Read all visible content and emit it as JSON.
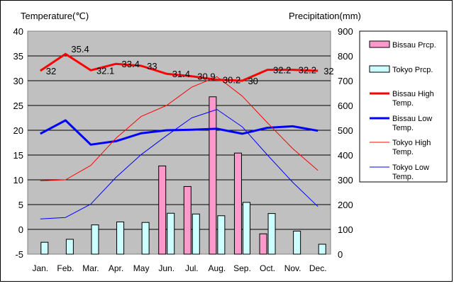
{
  "chart_data": {
    "type": "bar+line",
    "left_axis_title": "Temperature(℃)",
    "right_axis_title": "Precipitation(mm)",
    "categories": [
      "Jan.",
      "Feb.",
      "Mar.",
      "Apr.",
      "May",
      "Jun.",
      "Jul.",
      "Aug.",
      "Sep.",
      "Oct.",
      "Nov.",
      "Dec."
    ],
    "temp_axis": {
      "min": -5,
      "max": 40,
      "step": 5,
      "ticks": [
        "-5",
        "0",
        "5",
        "10",
        "15",
        "20",
        "25",
        "30",
        "35",
        "40"
      ]
    },
    "precip_axis": {
      "min": 0,
      "max": 900,
      "step": 100,
      "ticks": [
        "0",
        "100",
        "200",
        "300",
        "400",
        "500",
        "600",
        "700",
        "800",
        "900"
      ]
    },
    "bars": [
      {
        "name": "Bissau Prcp.",
        "color": "#ff99cc",
        "values": [
          0,
          0,
          0,
          0,
          0,
          356,
          273,
          635,
          408,
          82,
          0,
          0
        ]
      },
      {
        "name": "Tokyo Prcp.",
        "color": "#ccffff",
        "values": [
          48,
          60,
          118,
          130,
          128,
          165,
          162,
          155,
          209,
          164,
          93,
          40
        ]
      }
    ],
    "lines": [
      {
        "name": "Bissau High Temp.",
        "color": "#ff0000",
        "width": 3,
        "values": [
          32,
          35.4,
          32.1,
          33.4,
          33,
          31.4,
          30.9,
          30.2,
          30,
          32.2,
          32.2,
          32
        ],
        "labels": [
          "32",
          "35.4",
          "32.1",
          "33.4",
          "33",
          "31.4",
          "30.9",
          "30.2",
          "30",
          "32.2",
          "32.2",
          "32"
        ]
      },
      {
        "name": "Bissau Low Temp.",
        "color": "#0000ff",
        "width": 3,
        "values": [
          19.3,
          22,
          17.1,
          17.8,
          19.4,
          20,
          20.1,
          20.3,
          19.3,
          20.5,
          20.8,
          19.9
        ]
      },
      {
        "name": "Tokyo High Temp.",
        "color": "#ff0000",
        "width": 1,
        "values": [
          9.8,
          10,
          12.9,
          18.4,
          22.8,
          25,
          28.7,
          30.8,
          26.9,
          21.5,
          16.3,
          11.9
        ]
      },
      {
        "name": "Tokyo Low Temp.",
        "color": "#0000ff",
        "width": 1,
        "values": [
          2.1,
          2.4,
          5.1,
          10.5,
          15.1,
          18.9,
          22.5,
          24.2,
          20.7,
          15,
          9.5,
          4.6
        ]
      }
    ],
    "legend": [
      {
        "label": "Bissau Prcp.",
        "kind": "bar",
        "color": "#ff99cc"
      },
      {
        "label": "Tokyo Prcp.",
        "kind": "bar",
        "color": "#ccffff"
      },
      {
        "label": "Bissau High Temp.",
        "kind": "line",
        "color": "#ff0000",
        "width": 3
      },
      {
        "label": "Bissau Low Temp.",
        "kind": "line",
        "color": "#0000ff",
        "width": 3
      },
      {
        "label": "Tokyo High Temp.",
        "kind": "line",
        "color": "#ff0000",
        "width": 1
      },
      {
        "label": "Tokyo Low Temp.",
        "kind": "line",
        "color": "#0000ff",
        "width": 1
      }
    ],
    "legend_position": "right",
    "plot_background": "#c0c0c0",
    "grid": true
  }
}
